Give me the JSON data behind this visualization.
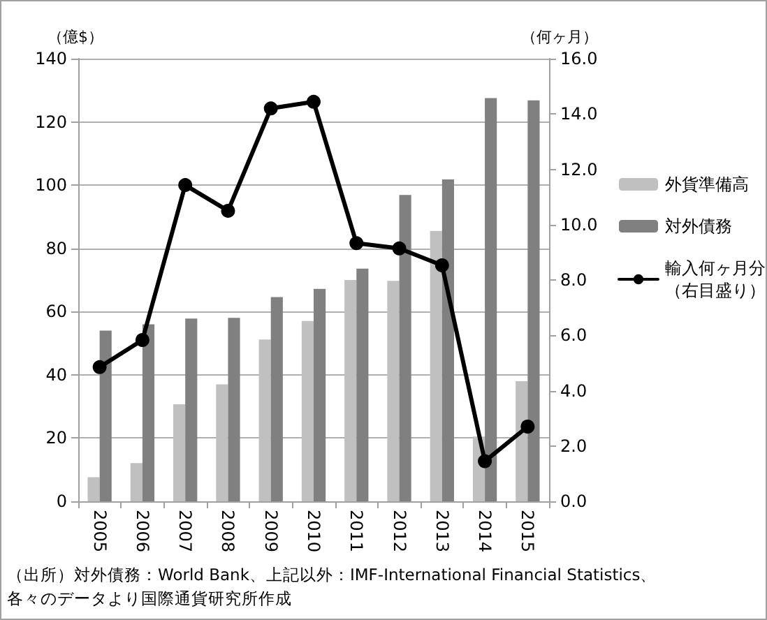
{
  "chart_data": {
    "type": "bar",
    "categories": [
      "2005",
      "2006",
      "2007",
      "2008",
      "2009",
      "2010",
      "2011",
      "2012",
      "2013",
      "2014",
      "2015"
    ],
    "series": [
      {
        "name": "外貨準備高",
        "color": "#c0c0c0",
        "values": [
          7.6,
          12.1,
          30.7,
          37,
          51.2,
          57,
          70,
          69.7,
          85.5,
          20.5,
          38
        ]
      },
      {
        "name": "対外債務",
        "color": "#808080",
        "values": [
          54,
          56,
          57.8,
          58,
          64.6,
          67.2,
          73.6,
          96.9,
          101.8,
          127.5,
          126.8
        ]
      },
      {
        "name": "輸入何ヶ月分（右目盛り）",
        "type": "line",
        "axis": "y2",
        "color": "#000000",
        "marker": "circle",
        "line_style": "solid",
        "values": [
          4.85,
          5.83,
          11.43,
          10.5,
          14.2,
          14.44,
          9.33,
          9.14,
          8.53,
          1.45,
          2.7
        ]
      }
    ],
    "ylabel": "（億$）",
    "y2label": "（何ヶ月）",
    "ylim": [
      0,
      140
    ],
    "yticks": [
      0,
      20,
      40,
      60,
      80,
      100,
      120,
      140
    ],
    "y2lim": [
      0,
      16
    ],
    "y2ticks": [
      {
        "value": 0,
        "label": "0.0"
      },
      {
        "value": 2,
        "label": "2.0"
      },
      {
        "value": 4,
        "label": "4.0"
      },
      {
        "value": 6,
        "label": "6.0"
      },
      {
        "value": 8,
        "label": "8.0"
      },
      {
        "value": 10,
        "label": "10.0"
      },
      {
        "value": 12,
        "label": "12.0"
      },
      {
        "value": 14,
        "label": "14.0"
      },
      {
        "value": 16,
        "label": "16.0"
      }
    ],
    "grid": "y",
    "legend": "right",
    "annotations": [
      "（出所）対外債務：World Bank、上記以外：IMF-International Financial Statistics、各々のデータより国際通貨研究所作成"
    ]
  }
}
